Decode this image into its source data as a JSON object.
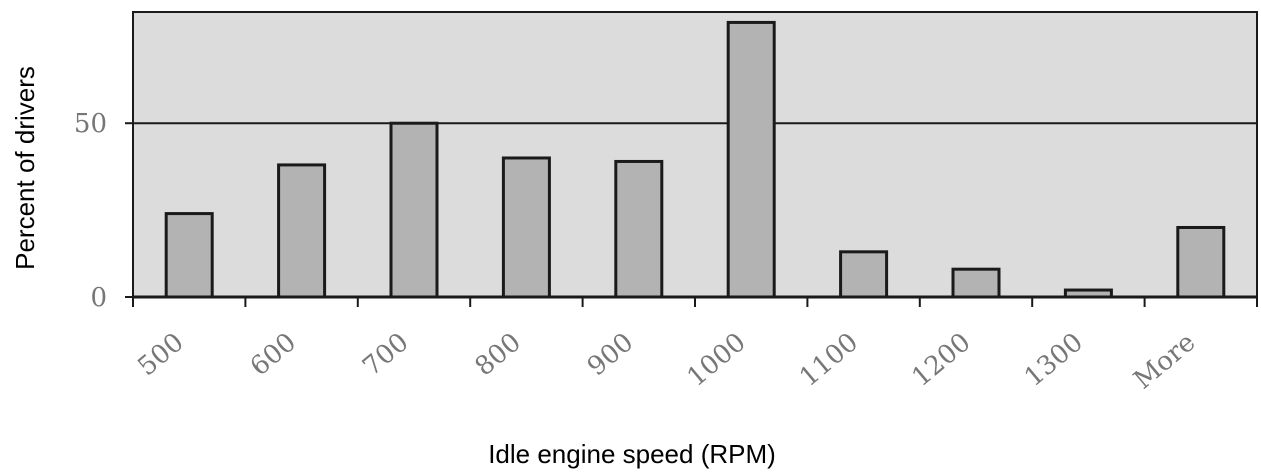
{
  "chart_data": {
    "type": "bar",
    "title": "",
    "xlabel": "Idle engine speed (RPM)",
    "ylabel": "Percent of drivers",
    "categories": [
      "500",
      "600",
      "700",
      "800",
      "900",
      "1000",
      "1100",
      "1200",
      "1300",
      "More"
    ],
    "values": [
      24,
      38,
      50,
      40,
      39,
      79,
      13,
      8,
      2,
      20
    ],
    "ylim": [
      0,
      82
    ],
    "yticks": [
      "0",
      "50"
    ],
    "grid": "horizontal at 50",
    "legend": "none",
    "colors": {
      "plot_background": "#dcdcdc",
      "bar_fill": "#b3b3b3",
      "bar_stroke": "#1a1a1a",
      "frame": "#1a1a1a"
    }
  }
}
